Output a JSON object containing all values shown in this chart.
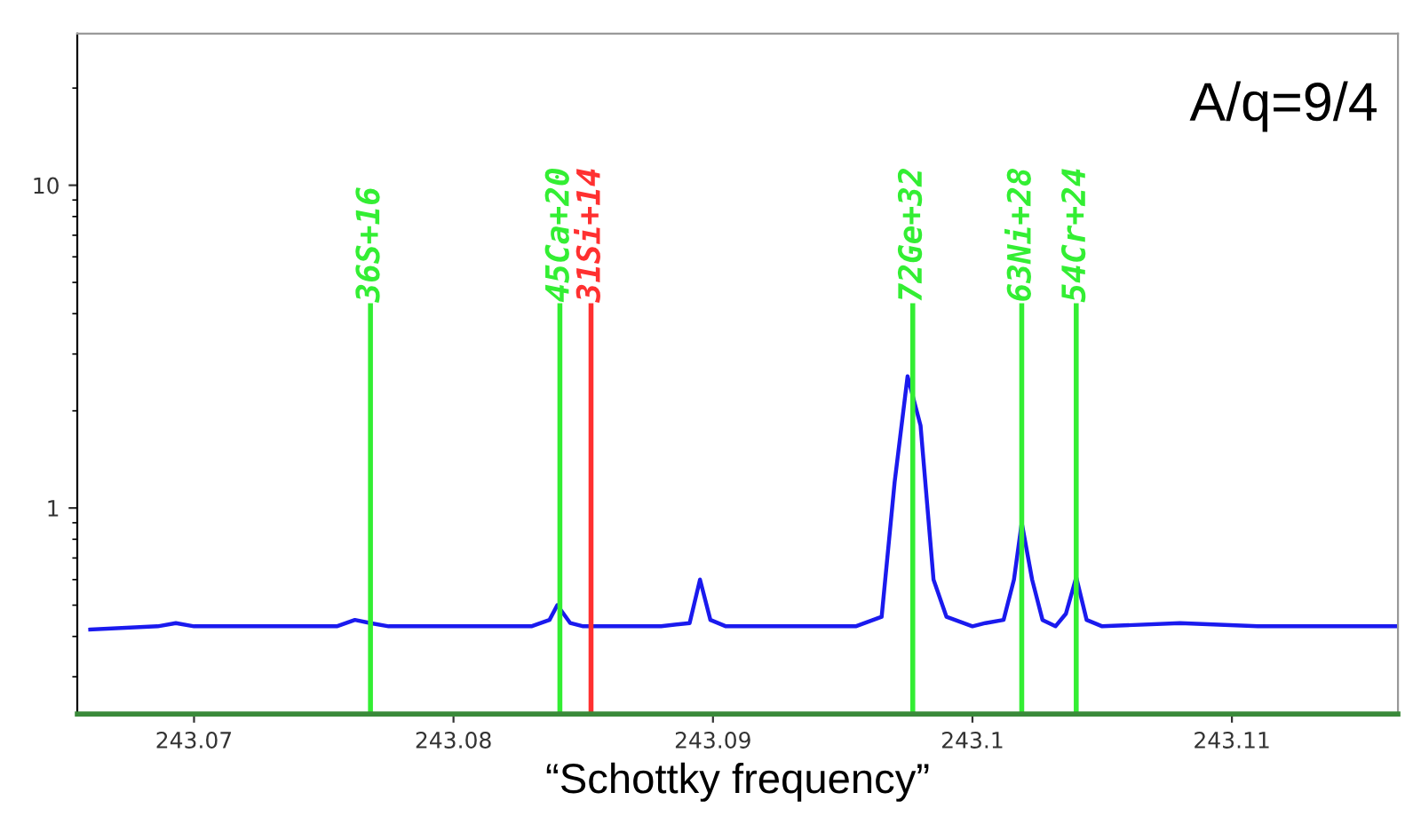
{
  "chart_data": {
    "type": "line",
    "xlabel": "“Schottky frequency”",
    "annotations": [
      "A/q=9/4"
    ],
    "log": "y",
    "grid": false,
    "marker": "none",
    "line_style": "solid",
    "xlim": [
      243.0655,
      243.1164
    ],
    "xticks": [
      243.07,
      243.08,
      243.09,
      243.1,
      243.11
    ],
    "ylim": [
      0.23,
      29.5
    ],
    "yticks": [
      1,
      10
    ],
    "series": [
      {
        "color": "#1a1aee",
        "x": [
          243.066,
          243.0686,
          243.0693,
          243.07,
          243.073,
          243.0755,
          243.0762,
          243.0768,
          243.0775,
          243.08,
          243.083,
          243.0837,
          243.084,
          243.0845,
          243.085,
          243.088,
          243.0891,
          243.0895,
          243.0899,
          243.0905,
          243.093,
          243.0955,
          243.0965,
          243.097,
          243.0975,
          243.098,
          243.0985,
          243.099,
          243.1,
          243.1005,
          243.1012,
          243.1016,
          243.1019,
          243.1023,
          243.1027,
          243.1032,
          243.1036,
          243.104,
          243.1044,
          243.105,
          243.108,
          243.111,
          243.114,
          243.1164
        ],
        "values": [
          0.42,
          0.43,
          0.44,
          0.43,
          0.43,
          0.43,
          0.45,
          0.44,
          0.43,
          0.43,
          0.43,
          0.45,
          0.5,
          0.44,
          0.43,
          0.43,
          0.44,
          0.6,
          0.45,
          0.43,
          0.43,
          0.43,
          0.46,
          1.2,
          2.56,
          1.8,
          0.6,
          0.46,
          0.43,
          0.44,
          0.45,
          0.6,
          0.9,
          0.6,
          0.45,
          0.43,
          0.47,
          0.61,
          0.45,
          0.43,
          0.44,
          0.43,
          0.43,
          0.43
        ]
      }
    ],
    "ref_lines": [
      {
        "axis": "x",
        "value": 243.0768,
        "label": "36S+16",
        "color": "#33ee33"
      },
      {
        "axis": "x",
        "value": 243.0841,
        "label": "45Ca+20",
        "color": "#33ee33"
      },
      {
        "axis": "x",
        "value": 243.0853,
        "label": "31Si+14",
        "color": "#ff3030"
      },
      {
        "axis": "x",
        "value": 243.0977,
        "label": "72Ge+32",
        "color": "#33ee33"
      },
      {
        "axis": "x",
        "value": 243.1019,
        "label": "63Ni+28",
        "color": "#33ee33"
      },
      {
        "axis": "x",
        "value": 243.104,
        "label": "54Cr+24",
        "color": "#33ee33"
      }
    ]
  }
}
